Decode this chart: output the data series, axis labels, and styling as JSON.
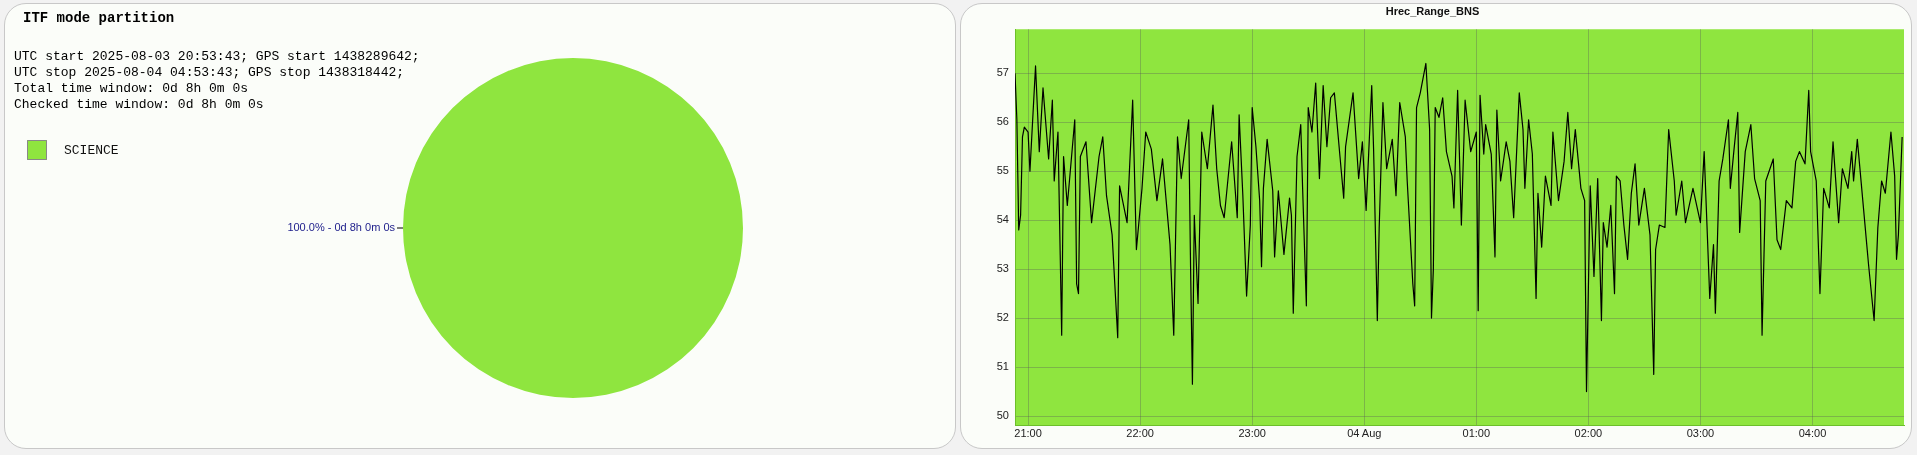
{
  "chart_data": [
    {
      "type": "pie",
      "title": "ITF mode partition",
      "annotations": [
        "UTC start 2025-08-03 20:53:43; GPS start 1438289642;",
        "UTC stop 2025-08-04 04:53:43; GPS stop 1438318442;",
        "Total time window: 0d 8h 0m 0s",
        "Checked time window: 0d 8h 0m 0s"
      ],
      "categories": [
        "SCIENCE"
      ],
      "values": [
        100
      ],
      "colors": [
        "#8fe53f"
      ],
      "value_labels": [
        "100.0% - 0d 8h 0m 0s"
      ],
      "legend": "top left"
    },
    {
      "type": "line",
      "title": "Hrec_Range_BNS",
      "legend": false,
      "grid": true,
      "ylim": [
        49.8,
        57.9
      ],
      "yticks": [
        50,
        51,
        52,
        53,
        54,
        55,
        56,
        57
      ],
      "xlim": [
        "2025-08-03T20:53",
        "2025-08-04T04:49"
      ],
      "xticks": [
        {
          "value": "2025-08-03T21:00",
          "label": "21:00"
        },
        {
          "value": "2025-08-03T22:00",
          "label": "22:00"
        },
        {
          "value": "2025-08-03T23:00",
          "label": "23:00"
        },
        {
          "value": "2025-08-04T00:00",
          "label": "04 Aug"
        },
        {
          "value": "2025-08-04T01:00",
          "label": "01:00"
        },
        {
          "value": "2025-08-04T02:00",
          "label": "02:00"
        },
        {
          "value": "2025-08-04T03:00",
          "label": "03:00"
        },
        {
          "value": "2025-08-04T04:00",
          "label": "04:00"
        }
      ],
      "x": [
        "2025-08-03T20:53",
        "2025-08-03T20:54",
        "2025-08-03T20:55",
        "2025-08-03T20:56",
        "2025-08-03T20:57",
        "2025-08-03T20:58",
        "2025-08-03T21:00",
        "2025-08-03T21:01",
        "2025-08-03T21:04",
        "2025-08-03T21:06",
        "2025-08-03T21:08",
        "2025-08-03T21:11",
        "2025-08-03T21:13",
        "2025-08-03T21:14",
        "2025-08-03T21:16",
        "2025-08-03T21:18",
        "2025-08-03T21:19",
        "2025-08-03T21:21",
        "2025-08-03T21:25",
        "2025-08-03T21:26",
        "2025-08-03T21:27",
        "2025-08-03T21:28",
        "2025-08-03T21:31",
        "2025-08-03T21:34",
        "2025-08-03T21:38",
        "2025-08-03T21:40",
        "2025-08-03T21:42",
        "2025-08-03T21:45",
        "2025-08-03T21:48",
        "2025-08-03T21:49",
        "2025-08-03T21:53",
        "2025-08-03T21:56",
        "2025-08-03T21:58",
        "2025-08-03T22:01",
        "2025-08-03T22:03",
        "2025-08-03T22:06",
        "2025-08-03T22:09",
        "2025-08-03T22:12",
        "2025-08-03T22:16",
        "2025-08-03T22:18",
        "2025-08-03T22:20",
        "2025-08-03T22:22",
        "2025-08-03T22:26",
        "2025-08-03T22:27",
        "2025-08-03T22:28",
        "2025-08-03T22:29",
        "2025-08-03T22:31",
        "2025-08-03T22:33",
        "2025-08-03T22:36",
        "2025-08-03T22:39",
        "2025-08-03T22:41",
        "2025-08-03T22:43",
        "2025-08-03T22:45",
        "2025-08-03T22:49",
        "2025-08-03T22:52",
        "2025-08-03T22:53",
        "2025-08-03T22:55",
        "2025-08-03T22:57",
        "2025-08-03T22:59",
        "2025-08-03T23:00",
        "2025-08-03T23:02",
        "2025-08-03T23:04",
        "2025-08-03T23:05",
        "2025-08-03T23:06",
        "2025-08-03T23:08",
        "2025-08-03T23:11",
        "2025-08-03T23:12",
        "2025-08-03T23:14",
        "2025-08-03T23:17",
        "2025-08-03T23:20",
        "2025-08-03T23:21",
        "2025-08-03T23:22",
        "2025-08-03T23:24",
        "2025-08-03T23:26",
        "2025-08-03T23:27",
        "2025-08-03T23:29",
        "2025-08-03T23:30",
        "2025-08-03T23:32",
        "2025-08-03T23:34",
        "2025-08-03T23:36",
        "2025-08-03T23:38",
        "2025-08-03T23:40",
        "2025-08-03T23:42",
        "2025-08-03T23:44",
        "2025-08-03T23:47",
        "2025-08-03T23:49",
        "2025-08-03T23:50",
        "2025-08-03T23:54",
        "2025-08-03T23:57",
        "2025-08-03T23:59",
        "2025-08-04T00:01",
        "2025-08-04T00:04",
        "2025-08-04T00:05",
        "2025-08-04T00:07",
        "2025-08-04T00:08",
        "2025-08-04T00:10",
        "2025-08-04T00:12",
        "2025-08-04T00:15",
        "2025-08-04T00:17",
        "2025-08-04T00:19",
        "2025-08-04T00:22",
        "2025-08-04T00:23",
        "2025-08-04T00:26",
        "2025-08-04T00:27",
        "2025-08-04T00:28",
        "2025-08-04T00:30",
        "2025-08-04T00:33",
        "2025-08-04T00:35",
        "2025-08-04T00:36",
        "2025-08-04T00:37",
        "2025-08-04T00:38",
        "2025-08-04T00:40",
        "2025-08-04T00:42",
        "2025-08-04T00:44",
        "2025-08-04T00:47",
        "2025-08-04T00:48",
        "2025-08-04T00:50",
        "2025-08-04T00:52",
        "2025-08-04T00:54",
        "2025-08-04T00:57",
        "2025-08-04T01:00",
        "2025-08-04T01:01",
        "2025-08-04T01:02",
        "2025-08-04T01:04",
        "2025-08-04T01:05",
        "2025-08-04T01:08",
        "2025-08-04T01:10",
        "2025-08-04T01:11",
        "2025-08-04T01:13",
        "2025-08-04T01:16",
        "2025-08-04T01:18",
        "2025-08-04T01:20",
        "2025-08-04T01:23",
        "2025-08-04T01:25",
        "2025-08-04T01:26",
        "2025-08-04T01:28",
        "2025-08-04T01:30",
        "2025-08-04T01:32",
        "2025-08-04T01:33",
        "2025-08-04T01:35",
        "2025-08-04T01:37",
        "2025-08-04T01:40",
        "2025-08-04T01:41",
        "2025-08-04T01:44",
        "2025-08-04T01:47",
        "2025-08-04T01:49",
        "2025-08-04T01:51",
        "2025-08-04T01:53",
        "2025-08-04T01:56",
        "2025-08-04T01:58",
        "2025-08-04T01:59",
        "2025-08-04T02:01",
        "2025-08-04T02:03",
        "2025-08-04T02:05",
        "2025-08-04T02:07",
        "2025-08-04T02:08",
        "2025-08-04T02:10",
        "2025-08-04T02:12",
        "2025-08-04T02:14",
        "2025-08-04T02:15",
        "2025-08-04T02:17",
        "2025-08-04T02:19",
        "2025-08-04T02:21",
        "2025-08-04T02:23",
        "2025-08-04T02:25",
        "2025-08-04T02:27",
        "2025-08-04T02:30",
        "2025-08-04T02:33",
        "2025-08-04T02:35",
        "2025-08-04T02:36",
        "2025-08-04T02:38",
        "2025-08-04T02:41",
        "2025-08-04T02:43",
        "2025-08-04T02:46",
        "2025-08-04T02:47",
        "2025-08-04T02:50",
        "2025-08-04T02:52",
        "2025-08-04T02:56",
        "2025-08-04T03:00",
        "2025-08-04T03:02",
        "2025-08-04T03:05",
        "2025-08-04T03:07",
        "2025-08-04T03:08",
        "2025-08-04T03:10",
        "2025-08-04T03:12",
        "2025-08-04T03:15",
        "2025-08-04T03:16",
        "2025-08-04T03:18",
        "2025-08-04T03:20",
        "2025-08-04T03:21",
        "2025-08-04T03:24",
        "2025-08-04T03:27",
        "2025-08-04T03:29",
        "2025-08-04T03:32",
        "2025-08-04T03:33",
        "2025-08-04T03:35",
        "2025-08-04T03:39",
        "2025-08-04T03:41",
        "2025-08-04T03:43",
        "2025-08-04T03:46",
        "2025-08-04T03:49",
        "2025-08-04T03:51",
        "2025-08-04T03:53",
        "2025-08-04T03:56",
        "2025-08-04T03:58",
        "2025-08-04T03:59",
        "2025-08-04T04:02",
        "2025-08-04T04:04",
        "2025-08-04T04:06",
        "2025-08-04T04:09",
        "2025-08-04T04:11",
        "2025-08-04T04:14",
        "2025-08-04T04:16",
        "2025-08-04T04:19",
        "2025-08-04T04:21",
        "2025-08-04T04:22",
        "2025-08-04T04:24",
        "2025-08-04T04:28",
        "2025-08-04T04:30",
        "2025-08-04T04:33",
        "2025-08-04T04:35",
        "2025-08-04T04:37",
        "2025-08-04T04:39",
        "2025-08-04T04:42",
        "2025-08-04T04:44",
        "2025-08-04T04:45",
        "2025-08-04T04:46",
        "2025-08-04T04:48"
      ],
      "series": [
        {
          "color": "#000000",
          "values": [
            57.0,
            56.05,
            53.8,
            54.1,
            55.7,
            55.9,
            55.8,
            55.0,
            57.15,
            55.4,
            56.7,
            55.25,
            56.45,
            54.8,
            55.8,
            51.65,
            55.3,
            54.3,
            56.05,
            52.7,
            52.5,
            55.3,
            55.6,
            53.95,
            55.3,
            55.7,
            54.5,
            53.7,
            51.6,
            54.7,
            53.95,
            56.45,
            53.4,
            54.65,
            55.8,
            55.45,
            54.4,
            55.25,
            53.5,
            51.65,
            55.7,
            54.85,
            56.05,
            53.05,
            50.65,
            54.1,
            52.3,
            55.8,
            55.05,
            56.35,
            55.05,
            54.3,
            54.05,
            55.6,
            54.05,
            56.15,
            54.5,
            52.45,
            53.9,
            56.3,
            55.5,
            54.4,
            53.05,
            54.65,
            55.65,
            54.6,
            53.25,
            54.6,
            53.3,
            54.45,
            54.1,
            52.1,
            55.3,
            55.95,
            54.65,
            52.25,
            56.3,
            55.8,
            56.8,
            54.85,
            56.75,
            55.5,
            56.5,
            56.6,
            55.3,
            54.45,
            55.5,
            56.6,
            54.85,
            55.6,
            54.2,
            56.75,
            55.45,
            51.95,
            53.85,
            56.4,
            55.05,
            55.65,
            54.5,
            56.4,
            55.7,
            54.8,
            52.7,
            52.25,
            56.3,
            56.6,
            57.2,
            55.85,
            52.0,
            53.0,
            56.3,
            56.1,
            56.5,
            55.4,
            54.9,
            54.25,
            56.65,
            53.9,
            56.45,
            55.4,
            55.8,
            52.15,
            56.55,
            55.35,
            55.95,
            55.35,
            53.25,
            56.25,
            54.8,
            55.6,
            55.2,
            54.05,
            56.6,
            55.85,
            54.65,
            56.05,
            55.35,
            52.4,
            54.55,
            53.45,
            54.9,
            54.3,
            55.8,
            54.4,
            55.2,
            56.2,
            55.05,
            55.85,
            54.65,
            54.4,
            50.5,
            54.7,
            52.85,
            54.85,
            51.95,
            53.95,
            53.45,
            54.3,
            52.5,
            54.9,
            54.8,
            53.9,
            53.2,
            54.55,
            55.15,
            53.9,
            54.65,
            53.7,
            50.85,
            53.4,
            53.9,
            53.85,
            55.85,
            54.8,
            54.1,
            54.8,
            53.95,
            54.65,
            53.95,
            55.4,
            52.4,
            53.5,
            52.1,
            54.8,
            55.25,
            56.05,
            54.65,
            55.45,
            56.2,
            53.75,
            55.4,
            55.95,
            54.85,
            54.4,
            51.65,
            54.8,
            55.25,
            53.6,
            53.4,
            54.4,
            54.25,
            55.2,
            55.4,
            55.15,
            56.65,
            55.4,
            54.8,
            52.5,
            54.65,
            54.25,
            55.6,
            53.95,
            55.05,
            54.65,
            55.4,
            54.8,
            55.65,
            53.95,
            53.1,
            51.95,
            53.85,
            54.8,
            54.55,
            55.8,
            54.9,
            53.2,
            53.7,
            55.7
          ]
        }
      ]
    }
  ]
}
